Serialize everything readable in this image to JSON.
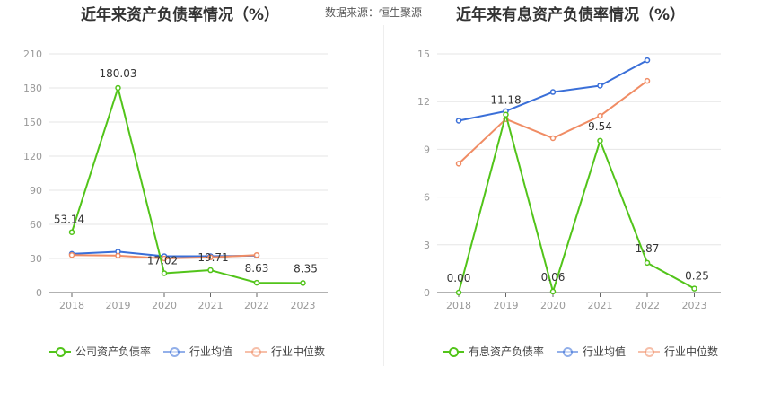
{
  "source_text": "数据来源：恒生聚源",
  "chart_data": [
    {
      "type": "line",
      "title": "近年来资产负债率情况（%）",
      "categories": [
        "2018",
        "2019",
        "2020",
        "2021",
        "2022",
        "2023"
      ],
      "ylim": [
        0,
        210
      ],
      "yticks": [
        0,
        30,
        60,
        90,
        120,
        150,
        180,
        210
      ],
      "grid": true,
      "legend_position": "bottom",
      "series": [
        {
          "name": "公司资产负债率",
          "color": "#52c41a",
          "values": [
            53.14,
            180.03,
            17.02,
            19.71,
            8.63,
            8.35
          ],
          "labels": [
            "53.14",
            "180.03",
            "17.02",
            "19.71",
            "8.63",
            "8.35"
          ]
        },
        {
          "name": "行业均值",
          "color": "#3a6fd8",
          "values": [
            34,
            36,
            32,
            32,
            32.5,
            null
          ]
        },
        {
          "name": "行业中位数",
          "color": "#f08c64",
          "values": [
            33,
            32.5,
            30,
            31,
            33,
            null
          ]
        }
      ]
    },
    {
      "type": "line",
      "title": "近年来有息资产负债率情况（%）",
      "categories": [
        "2018",
        "2019",
        "2020",
        "2021",
        "2022",
        "2023"
      ],
      "ylim": [
        0,
        15
      ],
      "yticks": [
        0,
        3,
        6,
        9,
        12,
        15
      ],
      "grid": true,
      "legend_position": "bottom",
      "series": [
        {
          "name": "有息资产负债率",
          "color": "#52c41a",
          "values": [
            0.0,
            11.18,
            0.06,
            9.54,
            1.87,
            0.25
          ],
          "labels": [
            "0.00",
            "11.18",
            "0.06",
            "9.54",
            "1.87",
            "0.25"
          ]
        },
        {
          "name": "行业均值",
          "color": "#3a6fd8",
          "values": [
            10.8,
            11.4,
            12.6,
            13.0,
            14.6,
            null
          ]
        },
        {
          "name": "行业中位数",
          "color": "#f08c64",
          "values": [
            8.1,
            10.9,
            9.7,
            11.1,
            13.3,
            null
          ]
        }
      ]
    }
  ]
}
